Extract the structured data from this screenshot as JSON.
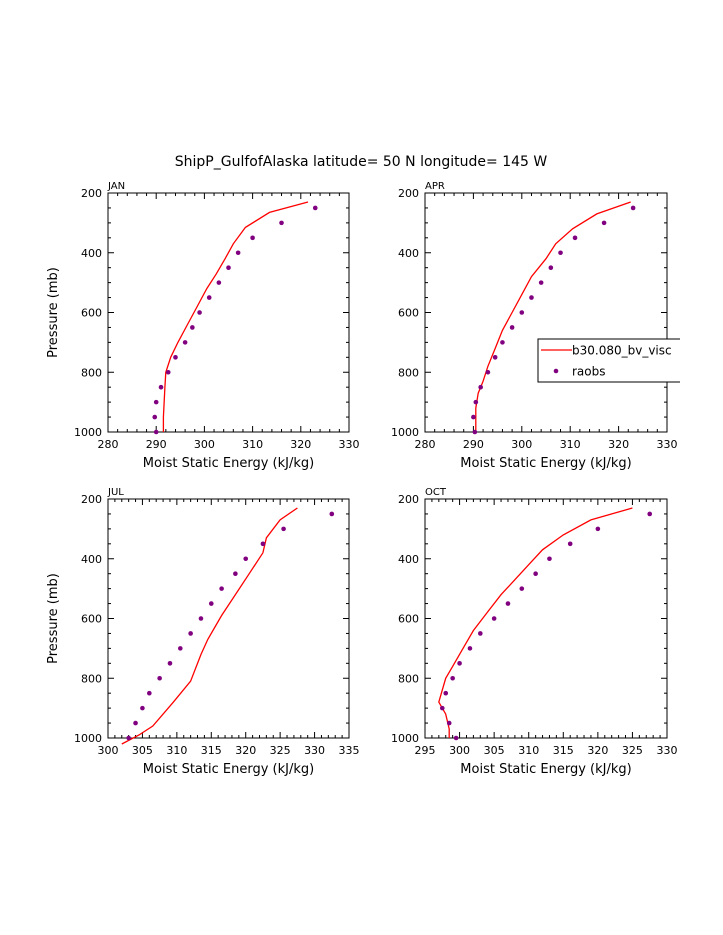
{
  "figure": {
    "title": "ShipP_GulfofAlaska  latitude= 50 N longitude= 145 W"
  },
  "legend": {
    "entries": [
      "b30.080_bv_visc",
      "raobs"
    ]
  },
  "colors": {
    "model": "#ff0000",
    "obs": "#800080"
  },
  "chart_data": [
    {
      "type": "line",
      "panel": "JAN",
      "xlabel": "Moist Static Energy (kJ/kg)",
      "ylabel": "Pressure (mb)",
      "xlim": [
        280,
        330
      ],
      "xticks": [
        280,
        290,
        300,
        310,
        320,
        330
      ],
      "ylim": [
        1000,
        200
      ],
      "yticks": [
        200,
        400,
        600,
        800,
        1000
      ],
      "series": [
        {
          "name": "b30.080_bv_visc",
          "x": [
            321.5,
            313.5,
            308.5,
            306,
            304.3,
            302.5,
            300.5,
            298.5,
            296.5,
            294.5,
            293,
            292,
            291.8,
            291.5,
            291.5
          ],
          "y": [
            230,
            265,
            315,
            370,
            420,
            470,
            520,
            580,
            640,
            700,
            750,
            800,
            850,
            950,
            1000
          ]
        },
        {
          "name": "raobs",
          "x": [
            323,
            316,
            310,
            307,
            305,
            303,
            301,
            299,
            297.5,
            296,
            294,
            292.5,
            291,
            290,
            289.7,
            290
          ],
          "y": [
            250,
            300,
            350,
            400,
            450,
            500,
            550,
            600,
            650,
            700,
            750,
            800,
            850,
            900,
            950,
            1000
          ]
        }
      ]
    },
    {
      "type": "line",
      "panel": "APR",
      "xlabel": "Moist Static Energy (kJ/kg)",
      "ylabel": "",
      "xlim": [
        280,
        330
      ],
      "xticks": [
        280,
        290,
        300,
        310,
        320,
        330
      ],
      "ylim": [
        1000,
        200
      ],
      "yticks": [
        200,
        400,
        600,
        800,
        1000
      ],
      "series": [
        {
          "name": "b30.080_bv_visc",
          "x": [
            322.5,
            315.5,
            310.5,
            307,
            305,
            302,
            300,
            298,
            296,
            294.5,
            293,
            292,
            291,
            290.5,
            290.5
          ],
          "y": [
            230,
            270,
            320,
            370,
            420,
            480,
            540,
            600,
            660,
            720,
            780,
            830,
            870,
            920,
            1000
          ]
        },
        {
          "name": "raobs",
          "x": [
            323,
            317,
            311,
            308,
            306,
            304,
            302,
            300,
            298,
            296,
            294.5,
            293,
            291.5,
            290.5,
            290,
            290.3
          ],
          "y": [
            250,
            300,
            350,
            400,
            450,
            500,
            550,
            600,
            650,
            700,
            750,
            800,
            850,
            900,
            950,
            1000
          ]
        }
      ]
    },
    {
      "type": "line",
      "panel": "JUL",
      "xlabel": "Moist Static Energy (kJ/kg)",
      "ylabel": "Pressure (mb)",
      "xlim": [
        300,
        335
      ],
      "xticks": [
        300,
        305,
        310,
        315,
        320,
        325,
        330,
        335
      ],
      "ylim": [
        1000,
        200
      ],
      "yticks": [
        200,
        400,
        600,
        800,
        1000
      ],
      "series": [
        {
          "name": "b30.080_bv_visc",
          "x": [
            327.5,
            325,
            323,
            322.5,
            320.5,
            318.5,
            316.5,
            314.5,
            313.5,
            312,
            309.5,
            306.5,
            304.5,
            302
          ],
          "y": [
            230,
            270,
            330,
            380,
            450,
            520,
            590,
            670,
            720,
            810,
            880,
            960,
            990,
            1020
          ]
        },
        {
          "name": "raobs",
          "x": [
            332.5,
            325.5,
            322.5,
            320,
            318.5,
            316.5,
            315,
            313.5,
            312,
            310.5,
            309,
            307.5,
            306,
            305,
            304,
            303
          ],
          "y": [
            250,
            300,
            350,
            400,
            450,
            500,
            550,
            600,
            650,
            700,
            750,
            800,
            850,
            900,
            950,
            1000
          ]
        }
      ]
    },
    {
      "type": "line",
      "panel": "OCT",
      "xlabel": "Moist Static Energy (kJ/kg)",
      "ylabel": "",
      "xlim": [
        295,
        330
      ],
      "xticks": [
        295,
        300,
        305,
        310,
        315,
        320,
        325,
        330
      ],
      "ylim": [
        1000,
        200
      ],
      "yticks": [
        200,
        400,
        600,
        800,
        1000
      ],
      "series": [
        {
          "name": "b30.080_bv_visc",
          "x": [
            325,
            319,
            315,
            312,
            310,
            308,
            306,
            304,
            302,
            300.5,
            299,
            298,
            297,
            298,
            298.5,
            298.5
          ],
          "y": [
            230,
            270,
            320,
            370,
            420,
            470,
            520,
            580,
            640,
            700,
            760,
            800,
            880,
            920,
            970,
            1000
          ]
        },
        {
          "name": "raobs",
          "x": [
            327.5,
            320,
            316,
            313,
            311,
            309,
            307,
            305,
            303,
            301.5,
            300,
            299,
            298,
            297.5,
            298.5,
            299.5
          ],
          "y": [
            250,
            300,
            350,
            400,
            450,
            500,
            550,
            600,
            650,
            700,
            750,
            800,
            850,
            900,
            950,
            1000
          ]
        }
      ]
    }
  ]
}
